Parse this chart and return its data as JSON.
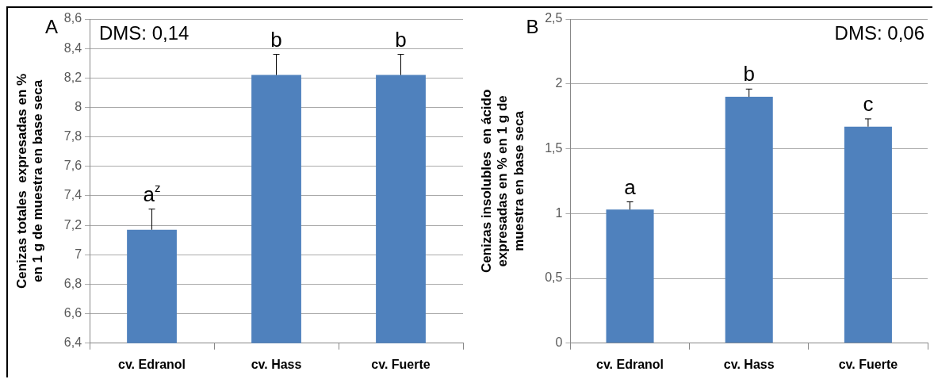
{
  "chart_data": [
    {
      "type": "bar",
      "title": "A",
      "ylabel": "Cenizas totales  expresadas en %\nen 1 g de muestra en base seca",
      "categories": [
        "cv. Edranol",
        "cv. Hass",
        "cv. Fuerte"
      ],
      "values": [
        7.17,
        8.22,
        8.22
      ],
      "color": "#4f81bd",
      "errors": [
        [
          7.17,
          7.31
        ],
        [
          8.22,
          8.36
        ],
        [
          8.22,
          8.36
        ]
      ],
      "ylim": [
        6.4,
        8.6
      ],
      "yticks": [
        {
          "value": 6.4,
          "label": "6,4"
        },
        {
          "value": 6.6,
          "label": "6,6"
        },
        {
          "value": 6.8,
          "label": "6,8"
        },
        7,
        {
          "value": 7.2,
          "label": "7,2"
        },
        {
          "value": 7.4,
          "label": "7,4"
        },
        {
          "value": 7.6,
          "label": "7,6"
        },
        {
          "value": 7.8,
          "label": "7,8"
        },
        8,
        {
          "value": 8.2,
          "label": "8,2"
        },
        {
          "value": 8.4,
          "label": "8,4"
        },
        {
          "value": 8.6,
          "label": "8,6"
        }
      ],
      "grid": "y",
      "annotations": [
        "DMS: 0,14",
        {
          "text": "a$^{z}$",
          "x": "cv. Edranol",
          "y": 7.31
        },
        {
          "text": "b",
          "x": "cv. Hass",
          "y": 8.36
        },
        {
          "text": "b",
          "x": "cv. Fuerte",
          "y": 8.36
        }
      ]
    },
    {
      "type": "bar",
      "title": "B",
      "ylabel": "Cenizas insolubles  en ácido\nexpresadas en % en 1 g de\nmuestra en base seca",
      "categories": [
        "cv. Edranol",
        "cv. Hass",
        "cv. Fuerte"
      ],
      "values": [
        1.03,
        1.9,
        1.67
      ],
      "color": "#4f81bd",
      "errors": [
        [
          1.03,
          1.09
        ],
        [
          1.9,
          1.96
        ],
        [
          1.67,
          1.73
        ]
      ],
      "ylim": [
        0,
        2.5
      ],
      "yticks": [
        0,
        {
          "value": 0.5,
          "label": "0,5"
        },
        1,
        {
          "value": 1.5,
          "label": "1,5"
        },
        2,
        {
          "value": 2.5,
          "label": "2,5"
        }
      ],
      "grid": "y",
      "annotations": [
        "DMS: 0,06",
        {
          "text": "a",
          "x": "cv. Edranol",
          "y": 1.09
        },
        {
          "text": "b",
          "x": "cv. Hass",
          "y": 1.96
        },
        {
          "text": "c",
          "x": "cv. Fuerte",
          "y": 1.73
        }
      ]
    }
  ]
}
